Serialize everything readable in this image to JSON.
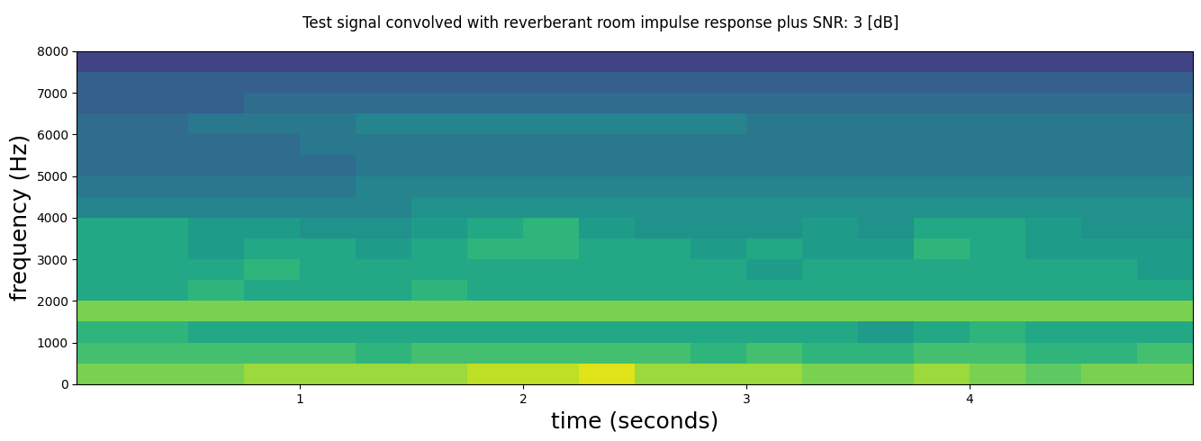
{
  "chart_data": {
    "type": "heatmap",
    "title": "Test signal convolved with reverberant room impulse response plus SNR: 3 [dB]",
    "xlabel": "time (seconds)",
    "ylabel": "frequency (Hz)",
    "color": "viridis",
    "x": [
      0,
      0.25,
      0.5,
      0.75,
      1.0,
      1.25,
      1.5,
      1.75,
      2.0,
      2.25,
      2.5,
      2.75,
      3.0,
      3.25,
      3.5,
      3.75,
      4.0,
      4.25,
      4.5,
      4.75,
      5.0
    ],
    "y": [
      0,
      500,
      1000,
      1500,
      2000,
      2500,
      3000,
      3500,
      4000,
      4500,
      5000,
      5500,
      6000,
      6500,
      7000,
      7500,
      8000
    ],
    "cells": [
      [
        8,
        8,
        8,
        8.5,
        8.5,
        8.5,
        8.5,
        9,
        9,
        9.5,
        8.5,
        8.5,
        8.5,
        8,
        8,
        8.5,
        8,
        7.5,
        8,
        8
      ],
      [
        7,
        7,
        7,
        7,
        7,
        6.5,
        7,
        7,
        7,
        7,
        7,
        6.5,
        7,
        6.5,
        6.5,
        7,
        7,
        6.5,
        6.5,
        7
      ],
      [
        6.5,
        6.5,
        6,
        6,
        6,
        6,
        6,
        6,
        6,
        6,
        6,
        6,
        6,
        6,
        5.5,
        6,
        6.5,
        6,
        6,
        6
      ],
      [
        8,
        8,
        8,
        8,
        8,
        8,
        8,
        8,
        8,
        8,
        8,
        8,
        8,
        8,
        8,
        8,
        8,
        8,
        8,
        8
      ],
      [
        6,
        6,
        6.5,
        6,
        6,
        6,
        6.5,
        6,
        6,
        6,
        6,
        6,
        6,
        6,
        6,
        6,
        6,
        6,
        6,
        6
      ],
      [
        6,
        6,
        6,
        6.5,
        6,
        6,
        6,
        6,
        6,
        6,
        6,
        6,
        5.5,
        6,
        6,
        6,
        6,
        6,
        6,
        5.5
      ],
      [
        6,
        6,
        5.5,
        6,
        6,
        5.5,
        6,
        6.5,
        6.5,
        6,
        6,
        5.5,
        6,
        5.5,
        5.5,
        6.5,
        6,
        5.5,
        5.5,
        5.5
      ],
      [
        6,
        6,
        5.5,
        5.5,
        5,
        5,
        5.5,
        6,
        6.5,
        5.5,
        5,
        5,
        5,
        5.5,
        5,
        6,
        6,
        5.5,
        5,
        5
      ],
      [
        4.5,
        4.5,
        4.5,
        4.5,
        4.5,
        4.5,
        5,
        5,
        5,
        5,
        5,
        5,
        5,
        5,
        5,
        5,
        5,
        5,
        5,
        5
      ],
      [
        4,
        4,
        4,
        4,
        4,
        4.5,
        4.5,
        4.5,
        4.5,
        4.5,
        4.5,
        4.5,
        4.5,
        4.5,
        4.5,
        4.5,
        4.5,
        4.5,
        4.5,
        4.5
      ],
      [
        3.5,
        3.5,
        3.5,
        3.5,
        3.5,
        4,
        4,
        4,
        4,
        4,
        4,
        4,
        4,
        4,
        4,
        4,
        4,
        4,
        4,
        4
      ],
      [
        3.5,
        3.5,
        3.5,
        3.5,
        4,
        4,
        4,
        4,
        4,
        4,
        4,
        4,
        4,
        4,
        4,
        4,
        4,
        4,
        4,
        4
      ],
      [
        3.5,
        3.5,
        4,
        4,
        4,
        4.5,
        4.5,
        4.5,
        4.5,
        4.5,
        4.5,
        4.5,
        4,
        4,
        4,
        4,
        4,
        4,
        4,
        4
      ],
      [
        3,
        3,
        3,
        3.5,
        3.5,
        3.5,
        3.5,
        3.5,
        3.5,
        3.5,
        3.5,
        3.5,
        3.5,
        3.5,
        3.5,
        3.5,
        3.5,
        3.5,
        3.5,
        3.5
      ],
      [
        3,
        3,
        3,
        3,
        3,
        3,
        3,
        3,
        3,
        3,
        3,
        3,
        3,
        3,
        3,
        3,
        3,
        3,
        3,
        3
      ],
      [
        2,
        2,
        2,
        2,
        2,
        2,
        2,
        2,
        2,
        2,
        2,
        2,
        2,
        2,
        2,
        2,
        2,
        2,
        2,
        2
      ]
    ],
    "color_range": [
      0,
      10
    ],
    "xlim": [
      0,
      5.0
    ],
    "ylim": [
      0,
      8000
    ],
    "xticks": [
      1,
      2,
      3,
      4
    ],
    "yticks": [
      0,
      1000,
      2000,
      3000,
      4000,
      5000,
      6000,
      7000,
      8000
    ]
  }
}
